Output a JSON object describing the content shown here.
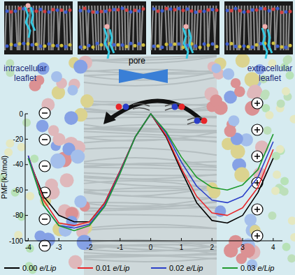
{
  "chart_data": {
    "type": "line",
    "x": [
      -4,
      -3.5,
      -3,
      -2.5,
      -2,
      -1.5,
      -1,
      -0.5,
      0,
      0.5,
      1,
      1.5,
      2,
      2.5,
      3,
      3.5,
      4
    ],
    "series": [
      {
        "name": "0.00 e/Lip",
        "color": "#000000",
        "values": [
          -35,
          -65,
          -80,
          -85,
          -85,
          -70,
          -45,
          -18,
          0,
          -18,
          -45,
          -70,
          -84,
          -86,
          -80,
          -62,
          -35
        ]
      },
      {
        "name": "0.01 e/Lip",
        "color": "#e8262a",
        "values": [
          -33,
          -68,
          -86,
          -88,
          -85,
          -70,
          -45,
          -18,
          0,
          -17,
          -43,
          -65,
          -78,
          -80,
          -74,
          -58,
          -28
        ]
      },
      {
        "name": "0.02 e/Lip",
        "color": "#2b3fc8",
        "values": [
          -33,
          -72,
          -88,
          -90,
          -87,
          -72,
          -46,
          -18,
          0,
          -15,
          -38,
          -57,
          -68,
          -70,
          -65,
          -50,
          -22
        ]
      },
      {
        "name": "0.03 e/Lip",
        "color": "#1f9a2e",
        "values": [
          -35,
          -72,
          -88,
          -92,
          -88,
          -73,
          -47,
          -18,
          0,
          -14,
          -34,
          -50,
          -58,
          -60,
          -56,
          -44,
          -16
        ]
      }
    ],
    "xlim": [
      -4.1,
      4.3
    ],
    "ylim": [
      -100,
      0
    ],
    "xticks": [
      -4,
      -3,
      -2,
      -1,
      0,
      1,
      2,
      3,
      4
    ],
    "yticks": [
      0,
      -20,
      -40,
      -60,
      -80,
      -100
    ],
    "y_label": "PMF(kJ/mol)",
    "annotations": [
      "intracellular leaflet",
      "extracellular leaflet",
      "pore"
    ],
    "legend": "bottom"
  }
}
